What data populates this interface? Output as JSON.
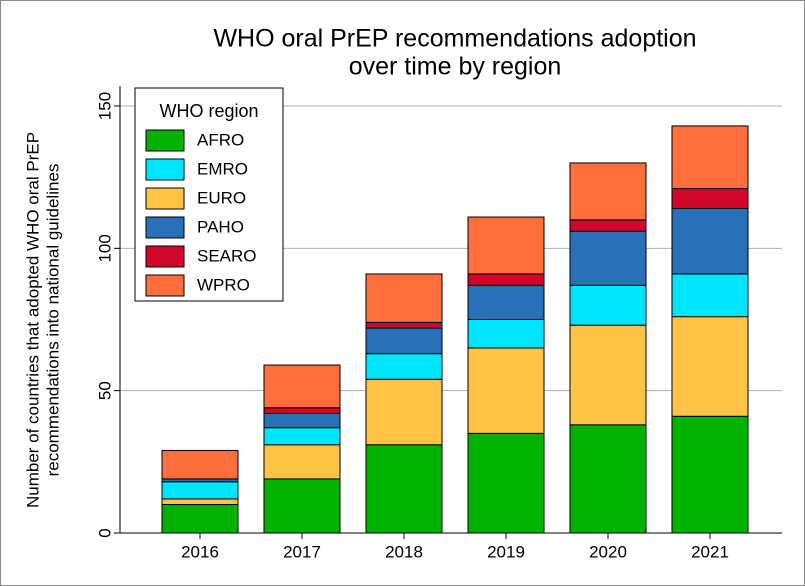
{
  "chart_data": {
    "type": "stacked_bar",
    "title": [
      "WHO oral PrEP recommendations adoption",
      "over time by region"
    ],
    "y_label": [
      "Number of countries that adopted WHO oral PrEP",
      "recommendations into national guidelines"
    ],
    "legend_title": "WHO region",
    "categories": [
      "2016",
      "2017",
      "2018",
      "2019",
      "2020",
      "2021"
    ],
    "series": [
      {
        "name": "AFRO",
        "color": "#00b200",
        "values": [
          10,
          19,
          31,
          35,
          38,
          41
        ]
      },
      {
        "name": "EMRO",
        "color": "#00e5ff",
        "values": [
          6,
          6,
          9,
          10,
          14,
          15
        ]
      },
      {
        "name": "EURO",
        "color": "#ffc445",
        "values": [
          2,
          12,
          23,
          30,
          35,
          35
        ]
      },
      {
        "name": "PAHO",
        "color": "#2870b7",
        "values": [
          1,
          5,
          9,
          12,
          19,
          23
        ]
      },
      {
        "name": "SEARO",
        "color": "#d0062a",
        "values": [
          0,
          2,
          2,
          4,
          4,
          7
        ]
      },
      {
        "name": "WPRO",
        "color": "#ff6e3c",
        "values": [
          10,
          15,
          17,
          20,
          20,
          22
        ]
      }
    ],
    "stack_order": [
      "AFRO",
      "EURO",
      "EMRO",
      "PAHO",
      "SEARO",
      "WPRO"
    ],
    "ylim": [
      0,
      150
    ],
    "yticks": [
      0,
      50,
      100,
      150
    ],
    "grid": true
  }
}
